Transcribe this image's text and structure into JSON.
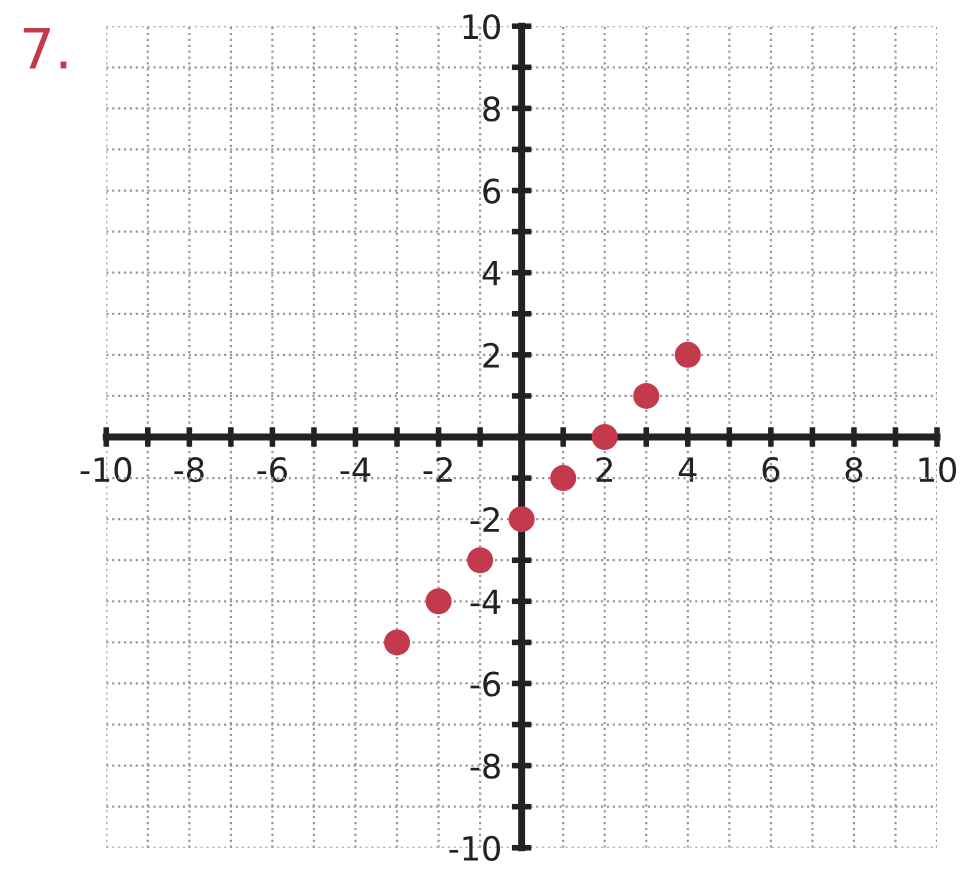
{
  "chart_data": {
    "type": "scatter",
    "annotations": [
      "7."
    ],
    "x": [
      -3,
      -2,
      -1,
      0,
      1,
      2,
      3,
      4
    ],
    "values": [
      -5,
      -4,
      -3,
      -2,
      -1,
      0,
      1,
      2
    ],
    "color": "#c23a4c",
    "marker": "circle",
    "xlim": [
      -10,
      10
    ],
    "ylim": [
      -10,
      10
    ],
    "xticks": [
      -10,
      {
        "value": -9,
        "label": null
      },
      -8,
      {
        "value": -7,
        "label": null
      },
      -6,
      {
        "value": -5,
        "label": null
      },
      -4,
      {
        "value": -3,
        "label": null
      },
      -2,
      {
        "value": -1,
        "label": null
      },
      {
        "value": 0,
        "label": null
      },
      {
        "value": 1,
        "label": null
      },
      2,
      {
        "value": 3,
        "label": null
      },
      4,
      {
        "value": 5,
        "label": null
      },
      6,
      {
        "value": 7,
        "label": null
      },
      8,
      {
        "value": 9,
        "label": null
      },
      10
    ],
    "yticks": [
      -10,
      {
        "value": -9,
        "label": null
      },
      -8,
      {
        "value": -7,
        "label": null
      },
      -6,
      {
        "value": -5,
        "label": null
      },
      -4,
      {
        "value": -3,
        "label": null
      },
      -2,
      {
        "value": -1,
        "label": null
      },
      {
        "value": 0,
        "label": null
      },
      {
        "value": 1,
        "label": null
      },
      2,
      {
        "value": 3,
        "label": null
      },
      4,
      {
        "value": 5,
        "label": null
      },
      6,
      {
        "value": 7,
        "label": null
      },
      8,
      {
        "value": 9,
        "label": null
      },
      10
    ],
    "grid": true
  }
}
